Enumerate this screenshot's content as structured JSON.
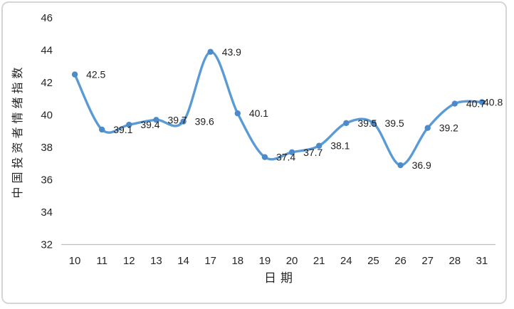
{
  "chart": {
    "line_color": "#5b9bd5",
    "marker_color": "#4d8ac9",
    "axis_line_color": "#bfbfbf",
    "text_color": "#262626",
    "frame_border_color": "#d6d6d6",
    "background_color": "#ffffff"
  },
  "chart_data": {
    "type": "line",
    "smooth": true,
    "markers": true,
    "grid": false,
    "legend": false,
    "data_labels": true,
    "title": "",
    "xlabel": "日期",
    "ylabel": "中国投资者情绪指数",
    "categories": [
      "10",
      "11",
      "12",
      "13",
      "14",
      "17",
      "18",
      "19",
      "20",
      "21",
      "24",
      "25",
      "26",
      "27",
      "28",
      "31"
    ],
    "values": [
      42.5,
      39.1,
      39.4,
      39.7,
      39.6,
      43.9,
      40.1,
      37.4,
      37.7,
      38.1,
      39.5,
      39.5,
      36.9,
      39.2,
      40.7,
      40.8
    ],
    "data_label_texts": [
      "42.5",
      "39.1",
      "39.4",
      "39.7",
      "39.6",
      "43.9",
      "40.1",
      "37.4",
      "37.7",
      "38.1",
      "39.5",
      "39.5",
      "36.9",
      "39.2",
      "40.7",
      "40.8"
    ],
    "ylim": [
      32,
      46
    ],
    "ytick_step": 2,
    "yticks": [
      "46",
      "44",
      "42",
      "40",
      "38",
      "36",
      "34",
      "32"
    ]
  }
}
